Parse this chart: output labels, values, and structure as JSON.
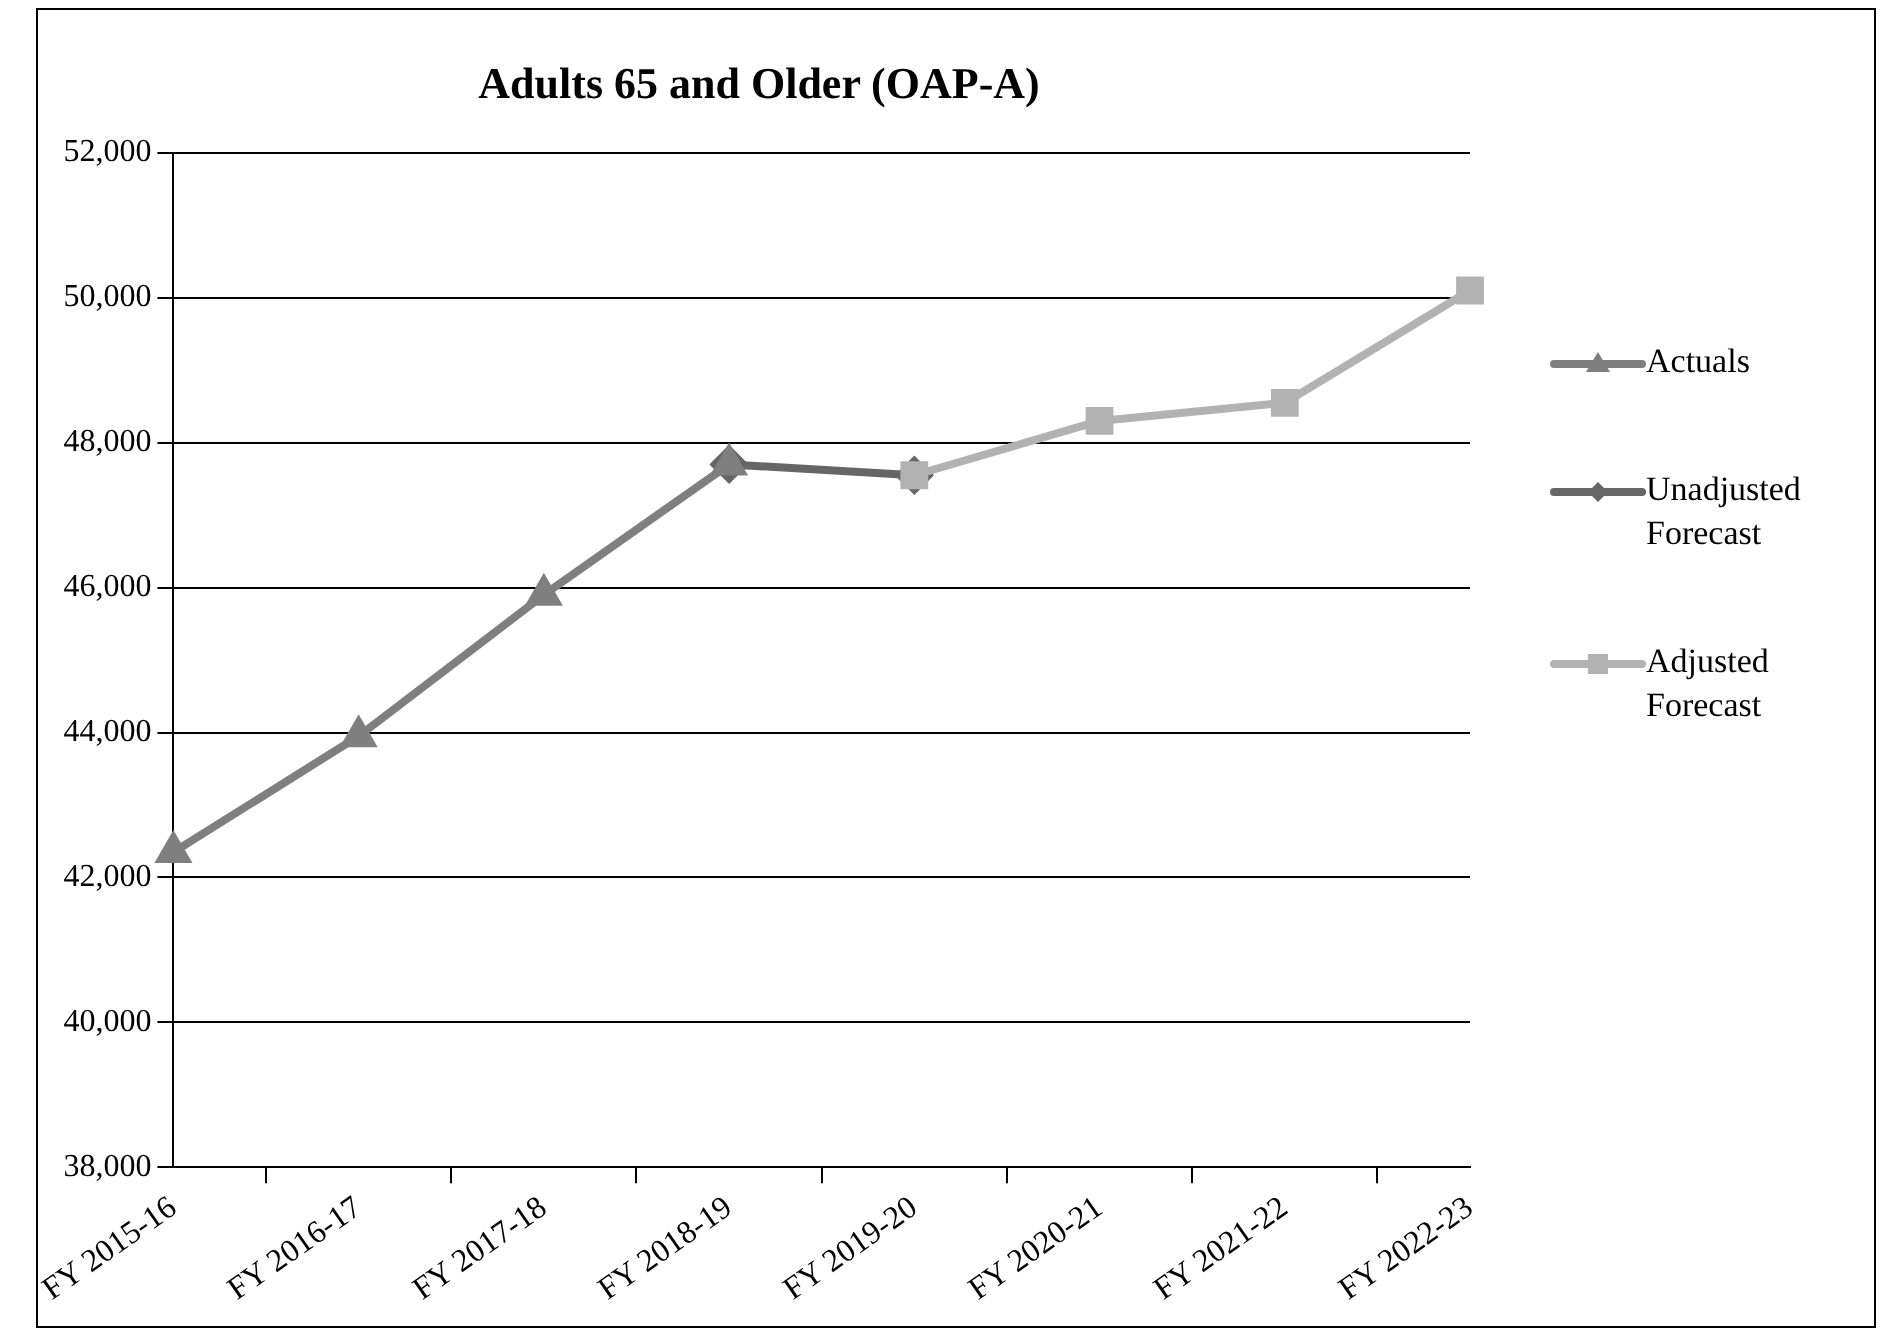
{
  "chart_data": {
    "type": "line",
    "title": "Adults 65 and Older (OAP-A)",
    "categories": [
      "FY 2015-16",
      "FY 2016-17",
      "FY 2017-18",
      "FY 2018-19",
      "FY 2019-20",
      "FY 2020-21",
      "FY 2021-22",
      "FY 2022-23"
    ],
    "series": [
      {
        "name": "Actuals",
        "color": "#7f7f7f",
        "marker": "triangle",
        "values": [
          42350,
          43950,
          45900,
          47700,
          null,
          null,
          null,
          null
        ]
      },
      {
        "name": "Unadjusted Forecast",
        "color": "#666666",
        "marker": "diamond",
        "values": [
          null,
          null,
          null,
          47700,
          47550,
          null,
          null,
          null
        ]
      },
      {
        "name": "Adjusted Forecast",
        "color": "#b2b2b2",
        "marker": "square",
        "values": [
          null,
          null,
          null,
          null,
          47550,
          48300,
          48550,
          50100
        ]
      }
    ],
    "ylim": [
      38000,
      52000
    ],
    "yticks": [
      {
        "value": 38000,
        "label": "38,000"
      },
      {
        "value": 40000,
        "label": "40,000"
      },
      {
        "value": 42000,
        "label": "42,000"
      },
      {
        "value": 44000,
        "label": "44,000"
      },
      {
        "value": 46000,
        "label": "46,000"
      },
      {
        "value": 48000,
        "label": "48,000"
      },
      {
        "value": 50000,
        "label": "50,000"
      },
      {
        "value": 52000,
        "label": "52,000"
      }
    ],
    "grid": "y",
    "legend": "right",
    "line_style": "solid"
  }
}
